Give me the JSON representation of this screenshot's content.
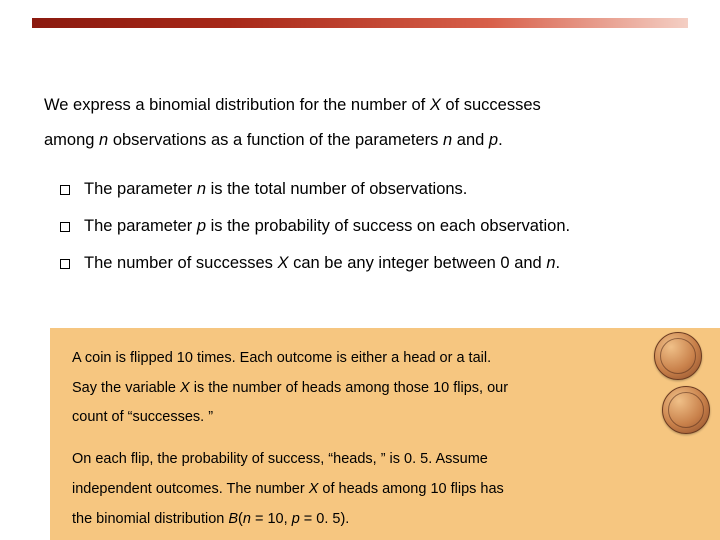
{
  "colors": {
    "bar_gradient_from": "#8b1a0f",
    "bar_gradient_to": "#f4cfc4",
    "example_bg": "#f6c680",
    "text": "#000000",
    "coin_light": "#f0c088",
    "coin_dark": "#8a4a28"
  },
  "intro": {
    "line1_a": "We express a binomial distribution for the number of ",
    "line1_X": "X",
    "line1_b": " of successes",
    "line2_a": "among ",
    "line2_n": "n",
    "line2_b": " observations as a function of the parameters ",
    "line2_n2": "n",
    "line2_c": " and ",
    "line2_p": "p",
    "line2_d": "."
  },
  "bullets": {
    "b1_a": "The parameter ",
    "b1_n": "n",
    "b1_b": " is the total number of observations.",
    "b2_a": "The parameter ",
    "b2_p": "p",
    "b2_b": " is the probability of success on each observation.",
    "b3_a": "The number of successes ",
    "b3_X": "X",
    "b3_b": " can be any integer between 0 and ",
    "b3_n": "n",
    "b3_c": "."
  },
  "example": {
    "p1_a": "A coin is flipped 10 times. Each outcome is either a head or a tail.",
    "p1_b_a": "Say the variable ",
    "p1_b_X": "X",
    "p1_b_b": " is the number of heads among those 10 flips, our",
    "p1_c": "count of “successes. ”",
    "p2_a": "On each flip, the probability of success, “heads, ” is 0. 5. Assume",
    "p2_b_a": "independent outcomes.  The number ",
    "p2_b_X": "X",
    "p2_b_b": " of heads among 10 flips has",
    "p2_c_a": "the binomial distribution ",
    "p2_c_B": "B",
    "p2_c_b": "(",
    "p2_c_n": "n",
    "p2_c_c": " = 10, ",
    "p2_c_p": "p",
    "p2_c_d": " = 0. 5)."
  }
}
